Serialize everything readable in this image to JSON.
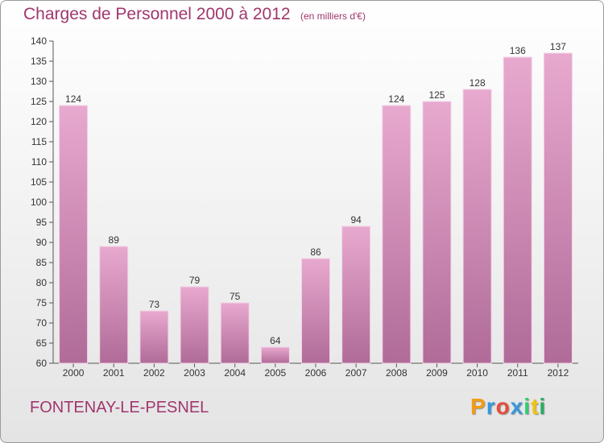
{
  "page": {
    "title": "Charges de Personnel 2000 à 2012",
    "subtitle": "(en milliers d'€)",
    "place": "FONTENAY-LE-PESNEL",
    "brand": {
      "text": "Proxiti",
      "letters": [
        {
          "ch": "P",
          "color": "#f39c12"
        },
        {
          "ch": "r",
          "color": "#3498db"
        },
        {
          "ch": "o",
          "color": "#e74c3c"
        },
        {
          "ch": "x",
          "color": "#3498db"
        },
        {
          "ch": "i",
          "color": "#2ecc71"
        },
        {
          "ch": "t",
          "color": "#f1c40f"
        },
        {
          "ch": "i",
          "color": "#27ae60"
        }
      ]
    }
  },
  "colors": {
    "bar_top": "#e8a9cf",
    "bar_bottom": "#b06b98",
    "text_accent": "#a0376e"
  },
  "chart_data": {
    "type": "bar",
    "title": "Charges de Personnel 2000 à 2012",
    "subtitle": "(en milliers d'€)",
    "categories": [
      "2000",
      "2001",
      "2002",
      "2003",
      "2004",
      "2005",
      "2006",
      "2007",
      "2008",
      "2009",
      "2010",
      "2011",
      "2012"
    ],
    "values": [
      124,
      89,
      73,
      79,
      75,
      64,
      86,
      94,
      124,
      125,
      128,
      136,
      137
    ],
    "ylim": [
      60,
      140
    ],
    "yticks": [
      60,
      65,
      70,
      75,
      80,
      85,
      90,
      95,
      100,
      105,
      110,
      115,
      120,
      125,
      130,
      135,
      140
    ],
    "grid": false,
    "data_labels": true
  }
}
